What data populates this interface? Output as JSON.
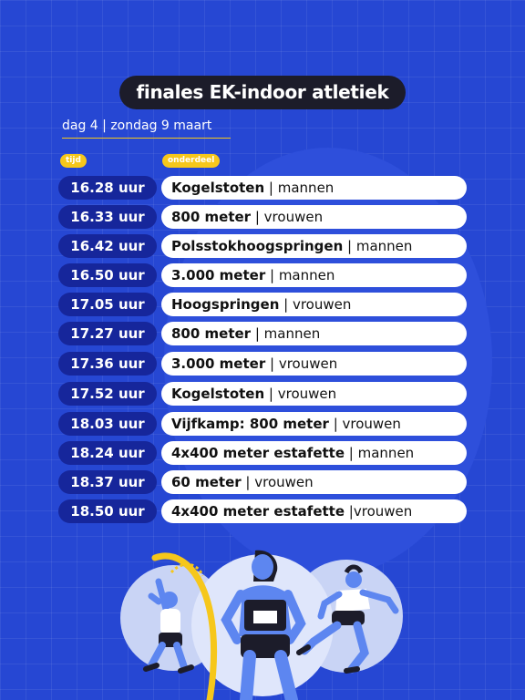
{
  "title": "finales EK-indoor atletiek",
  "subtitle": "dag 4 | zondag 9 maart",
  "headers": {
    "time": "tijd",
    "event": "onderdeel"
  },
  "schedule": [
    {
      "time": "16.28 uur",
      "event": "Kogelstoten",
      "sep": " | ",
      "gender": "mannen"
    },
    {
      "time": "16.33 uur",
      "event": "800 meter",
      "sep": " | ",
      "gender": "vrouwen"
    },
    {
      "time": "16.42 uur",
      "event": "Polsstokhoogspringen",
      "sep": " | ",
      "gender": "mannen"
    },
    {
      "time": "16.50 uur",
      "event": "3.000 meter",
      "sep": " | ",
      "gender": "mannen"
    },
    {
      "time": "17.05 uur",
      "event": "Hoogspringen",
      "sep": " | ",
      "gender": "vrouwen"
    },
    {
      "time": "17.27 uur",
      "event": "800 meter",
      "sep": " | ",
      "gender": "mannen"
    },
    {
      "time": "17.36 uur",
      "event": "3.000 meter",
      "sep": " | ",
      "gender": "vrouwen"
    },
    {
      "time": "17.52 uur",
      "event": "Kogelstoten",
      "sep": " | ",
      "gender": "vrouwen"
    },
    {
      "time": "18.03 uur",
      "event": "Vijfkamp: 800 meter",
      "sep": " | ",
      "gender": "vrouwen"
    },
    {
      "time": "18.24 uur",
      "event": "4x400 meter estafette",
      "sep": " | ",
      "gender": "mannen"
    },
    {
      "time": "18.37 uur",
      "event": "60 meter",
      "sep": " | ",
      "gender": "vrouwen"
    },
    {
      "time": "18.50 uur",
      "event": "4x400 meter estafette",
      "sep": " |",
      "gender": "vrouwen"
    }
  ],
  "colors": {
    "background": "#2647d3",
    "time_pill": "#16269b",
    "accent": "#f6c71b",
    "title_pill": "#1c1c2a"
  }
}
